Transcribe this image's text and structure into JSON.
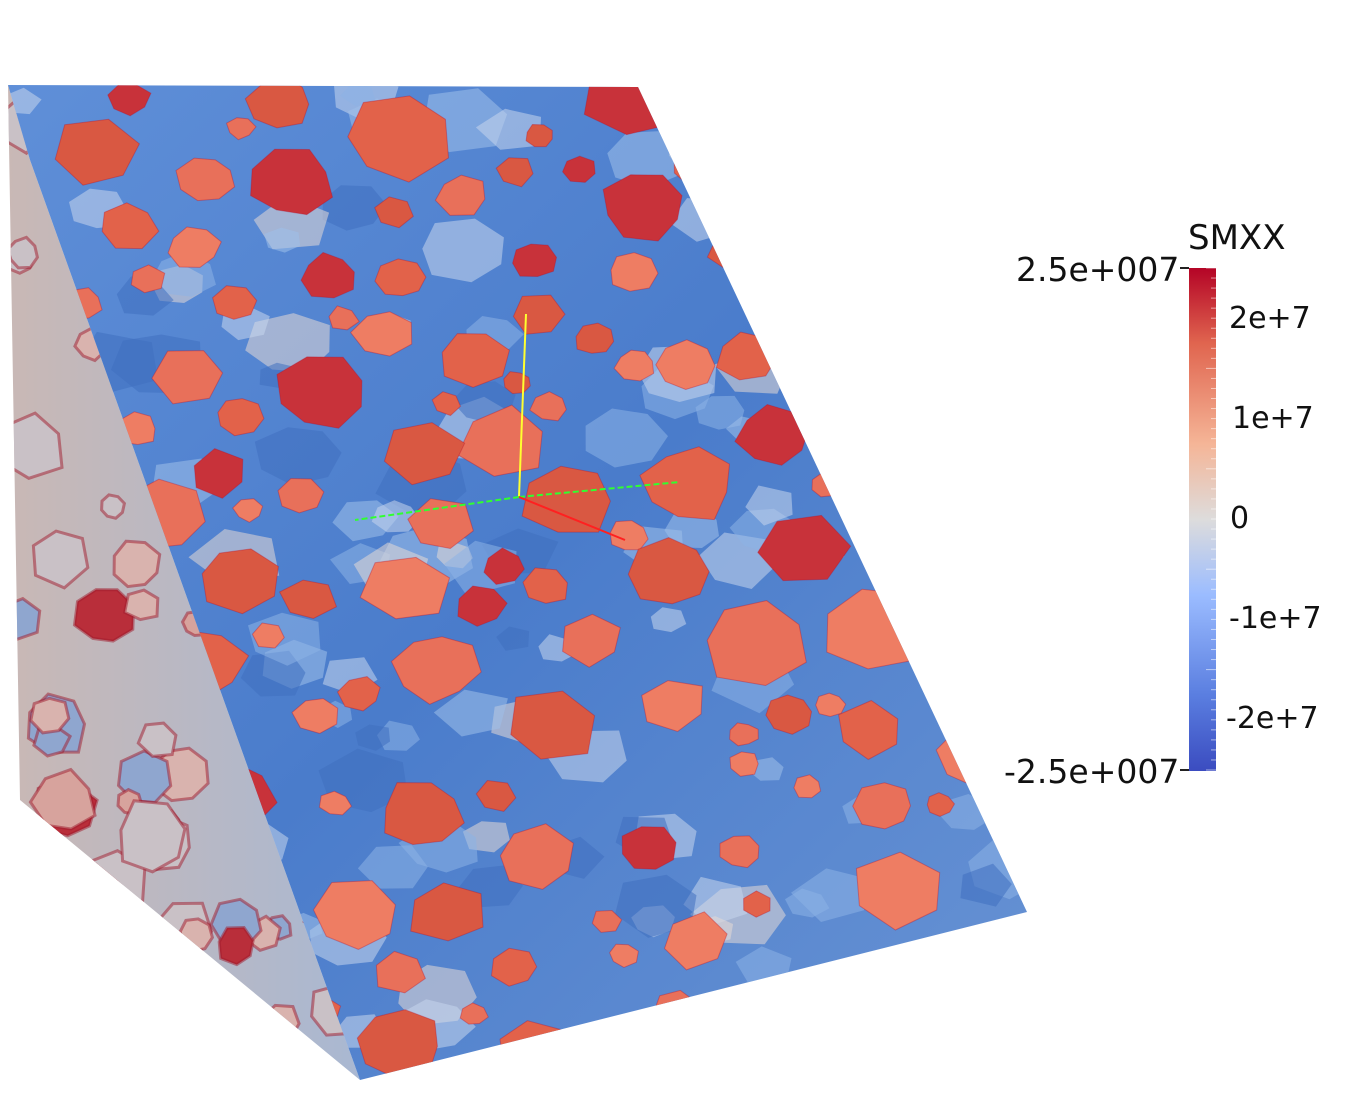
{
  "scalar_bar": {
    "title": "SMXX",
    "range_max_label": "2.5e+007",
    "range_min_label": "-2.5e+007",
    "range": [
      -25000000,
      25000000
    ],
    "ticks": [
      {
        "value": 20000000,
        "label": "2e+7"
      },
      {
        "value": 10000000,
        "label": "1e+7"
      },
      {
        "value": 0,
        "label": "0"
      },
      {
        "value": -10000000,
        "label": "-1e+7"
      },
      {
        "value": -20000000,
        "label": "-2e+7"
      }
    ],
    "colormap": [
      "#3b4cc0",
      "#6a8bef",
      "#9bbcff",
      "#c9d8ef",
      "#eddbcd",
      "#f6a789",
      "#e26952",
      "#b40426"
    ]
  },
  "axes": {
    "x_color": "#ff2020",
    "y_color": "#ffff30",
    "z_color": "#30ff30"
  },
  "mesh": {
    "matrix_color": "#4a7fd0",
    "grain_color": "#e2624a",
    "grain_dark": "#b40f2a"
  }
}
